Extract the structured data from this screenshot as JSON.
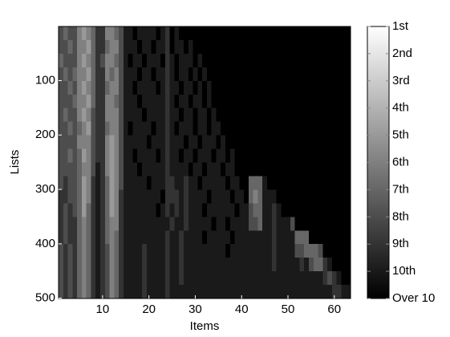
{
  "chart_data": {
    "type": "heatmap",
    "xlabel": "Items",
    "ylabel": "Lists",
    "x": [
      1,
      2,
      3,
      4,
      5,
      6,
      7,
      8,
      9,
      10,
      11,
      12,
      13,
      14,
      15,
      16,
      17,
      18,
      19,
      20,
      21,
      22,
      23,
      24,
      25,
      26,
      27,
      28,
      29,
      30,
      31,
      32,
      33,
      34,
      35,
      36,
      37,
      38,
      39,
      40,
      41,
      42,
      43,
      44,
      45,
      46,
      47,
      48,
      49,
      50,
      51,
      52,
      53,
      54,
      55,
      56,
      57,
      58,
      59,
      60,
      61,
      62,
      63
    ],
    "ybins": [
      0.5,
      25.5,
      50.5,
      75.5,
      100.5,
      125.5,
      150.5,
      175.5,
      200.5,
      225.5,
      250.5,
      275.5,
      300.5,
      325.5,
      350.5,
      375.5,
      400.5,
      425.5,
      450.5,
      475.5,
      500.5
    ],
    "xlim": [
      0.5,
      63.5
    ],
    "xticks": [
      10,
      20,
      30,
      40,
      50,
      60
    ],
    "ylim": [
      0.5,
      500.5
    ],
    "yticks": [
      100,
      200,
      300,
      400,
      500
    ],
    "y_reversed": true,
    "clim": [
      1,
      11
    ],
    "colorbar_ticks": [
      {
        "value": 1,
        "label": "1st"
      },
      {
        "value": 2,
        "label": "2nd"
      },
      {
        "value": 3,
        "label": "3rd"
      },
      {
        "value": 4,
        "label": "4th"
      },
      {
        "value": 5,
        "label": "5th"
      },
      {
        "value": 6,
        "label": "6th"
      },
      {
        "value": 7,
        "label": "7th"
      },
      {
        "value": 8,
        "label": "8th"
      },
      {
        "value": 9,
        "label": "9th"
      },
      {
        "value": 10,
        "label": "10th"
      },
      {
        "value": 11,
        "label": "Over 10"
      }
    ],
    "z": [
      [
        8,
        7,
        8,
        8,
        6,
        5,
        6,
        7,
        9,
        9,
        6,
        6,
        7,
        8,
        10,
        10,
        11,
        10,
        10,
        10,
        10,
        11,
        10,
        9,
        11,
        10,
        11,
        11,
        11,
        11,
        11,
        11,
        11,
        11,
        11,
        11,
        11,
        11,
        11,
        11,
        11,
        11,
        11,
        11,
        11,
        11,
        11,
        11,
        11,
        11,
        11,
        11,
        11,
        11,
        11,
        11,
        11,
        11,
        11,
        11,
        11,
        11,
        11
      ],
      [
        8,
        8,
        7,
        8,
        6,
        6,
        5,
        7,
        9,
        9,
        7,
        6,
        6,
        8,
        10,
        10,
        10,
        11,
        10,
        10,
        11,
        10,
        10,
        9,
        11,
        10,
        10,
        11,
        10,
        11,
        11,
        11,
        11,
        11,
        11,
        11,
        11,
        11,
        11,
        11,
        11,
        11,
        11,
        11,
        11,
        11,
        11,
        11,
        11,
        11,
        11,
        11,
        11,
        11,
        11,
        11,
        11,
        11,
        11,
        11,
        11,
        11,
        11
      ],
      [
        7,
        8,
        8,
        8,
        6,
        5,
        6,
        7,
        9,
        8,
        6,
        6,
        7,
        8,
        10,
        11,
        10,
        10,
        11,
        10,
        10,
        10,
        11,
        9,
        10,
        11,
        10,
        10,
        10,
        11,
        10,
        11,
        11,
        11,
        11,
        11,
        11,
        11,
        11,
        11,
        11,
        11,
        11,
        11,
        11,
        11,
        11,
        11,
        11,
        11,
        11,
        11,
        11,
        11,
        11,
        11,
        11,
        11,
        11,
        11,
        11,
        11,
        11
      ],
      [
        8,
        7,
        8,
        7,
        6,
        6,
        5,
        7,
        9,
        9,
        6,
        7,
        6,
        8,
        10,
        10,
        10,
        11,
        10,
        10,
        11,
        10,
        10,
        9,
        10,
        11,
        10,
        10,
        11,
        10,
        11,
        10,
        11,
        11,
        11,
        11,
        11,
        11,
        11,
        11,
        11,
        11,
        11,
        11,
        11,
        11,
        11,
        11,
        11,
        11,
        11,
        11,
        11,
        11,
        11,
        11,
        11,
        11,
        11,
        11,
        11,
        11,
        11
      ],
      [
        8,
        8,
        7,
        8,
        6,
        5,
        6,
        7,
        9,
        9,
        7,
        6,
        6,
        8,
        10,
        10,
        11,
        10,
        10,
        10,
        10,
        11,
        10,
        9,
        10,
        10,
        11,
        10,
        10,
        11,
        10,
        11,
        10,
        11,
        11,
        11,
        11,
        11,
        11,
        11,
        11,
        11,
        11,
        11,
        11,
        11,
        11,
        11,
        11,
        11,
        11,
        11,
        11,
        11,
        11,
        11,
        11,
        11,
        11,
        11,
        11,
        11,
        11
      ],
      [
        8,
        8,
        8,
        7,
        6,
        6,
        5,
        7,
        9,
        9,
        6,
        6,
        7,
        8,
        10,
        10,
        10,
        11,
        10,
        10,
        10,
        10,
        10,
        9,
        10,
        11,
        10,
        10,
        11,
        10,
        10,
        11,
        10,
        11,
        11,
        11,
        11,
        11,
        11,
        11,
        11,
        11,
        11,
        11,
        11,
        11,
        11,
        11,
        11,
        11,
        11,
        11,
        11,
        11,
        11,
        11,
        11,
        11,
        11,
        11,
        11,
        11,
        11
      ],
      [
        8,
        7,
        8,
        8,
        6,
        5,
        6,
        8,
        9,
        9,
        6,
        6,
        6,
        8,
        10,
        10,
        10,
        10,
        11,
        10,
        10,
        10,
        10,
        9,
        10,
        10,
        11,
        10,
        10,
        11,
        10,
        10,
        11,
        10,
        11,
        11,
        11,
        11,
        11,
        11,
        11,
        11,
        11,
        11,
        11,
        11,
        11,
        11,
        11,
        11,
        11,
        11,
        11,
        11,
        11,
        11,
        11,
        11,
        11,
        11,
        11,
        11,
        11
      ],
      [
        8,
        8,
        7,
        8,
        7,
        6,
        5,
        8,
        9,
        9,
        7,
        6,
        6,
        8,
        10,
        11,
        10,
        10,
        10,
        10,
        11,
        10,
        10,
        9,
        10,
        11,
        10,
        10,
        10,
        11,
        10,
        10,
        11,
        10,
        10,
        11,
        11,
        11,
        11,
        11,
        11,
        11,
        11,
        11,
        11,
        11,
        11,
        11,
        11,
        11,
        11,
        11,
        11,
        11,
        11,
        11,
        11,
        11,
        11,
        11,
        11,
        11,
        11
      ],
      [
        8,
        8,
        8,
        8,
        6,
        6,
        6,
        8,
        9,
        9,
        6,
        5,
        6,
        8,
        10,
        10,
        10,
        10,
        10,
        11,
        10,
        10,
        10,
        9,
        10,
        10,
        10,
        11,
        10,
        10,
        11,
        10,
        10,
        10,
        11,
        10,
        11,
        11,
        11,
        11,
        11,
        11,
        11,
        11,
        11,
        11,
        11,
        11,
        11,
        11,
        11,
        11,
        11,
        11,
        11,
        11,
        11,
        11,
        11,
        11,
        11,
        11,
        11
      ],
      [
        8,
        8,
        7,
        8,
        7,
        5,
        6,
        8,
        9,
        9,
        6,
        5,
        6,
        8,
        10,
        10,
        11,
        10,
        10,
        10,
        10,
        11,
        10,
        9,
        10,
        10,
        11,
        10,
        10,
        11,
        10,
        10,
        10,
        11,
        10,
        10,
        11,
        10,
        11,
        11,
        11,
        11,
        11,
        11,
        11,
        11,
        11,
        11,
        11,
        11,
        11,
        11,
        11,
        11,
        11,
        11,
        11,
        11,
        11,
        11,
        11,
        11,
        11
      ],
      [
        8,
        8,
        8,
        8,
        7,
        6,
        6,
        8,
        10,
        9,
        6,
        5,
        6,
        8,
        10,
        10,
        10,
        11,
        10,
        10,
        10,
        10,
        10,
        9,
        10,
        10,
        10,
        10,
        11,
        10,
        10,
        11,
        10,
        10,
        10,
        11,
        10,
        10,
        11,
        11,
        11,
        11,
        11,
        11,
        11,
        11,
        11,
        11,
        11,
        11,
        11,
        11,
        11,
        11,
        11,
        11,
        11,
        11,
        11,
        11,
        11,
        11,
        11
      ],
      [
        8,
        9,
        8,
        8,
        7,
        5,
        6,
        9,
        10,
        9,
        7,
        5,
        6,
        8,
        10,
        10,
        10,
        10,
        10,
        11,
        10,
        10,
        10,
        9,
        9,
        10,
        10,
        9,
        10,
        10,
        11,
        10,
        10,
        10,
        10,
        10,
        11,
        10,
        10,
        11,
        11,
        7,
        7,
        7,
        10,
        11,
        11,
        11,
        11,
        11,
        11,
        11,
        11,
        11,
        11,
        11,
        11,
        11,
        11,
        11,
        11,
        11,
        11
      ],
      [
        9,
        9,
        8,
        8,
        7,
        5,
        6,
        9,
        10,
        9,
        7,
        5,
        6,
        9,
        10,
        10,
        10,
        10,
        10,
        10,
        10,
        10,
        11,
        9,
        9,
        9,
        10,
        9,
        10,
        10,
        10,
        10,
        11,
        10,
        10,
        10,
        10,
        11,
        10,
        10,
        11,
        7,
        6,
        7,
        10,
        10,
        10,
        11,
        11,
        11,
        11,
        11,
        11,
        11,
        11,
        11,
        11,
        11,
        11,
        11,
        11,
        11,
        11
      ],
      [
        9,
        8,
        9,
        8,
        7,
        5,
        7,
        9,
        10,
        9,
        7,
        5,
        6,
        9,
        10,
        10,
        10,
        10,
        10,
        10,
        10,
        11,
        10,
        9,
        10,
        9,
        10,
        9,
        10,
        10,
        10,
        11,
        10,
        10,
        10,
        10,
        10,
        10,
        11,
        10,
        10,
        8,
        7,
        7,
        10,
        10,
        9,
        10,
        11,
        11,
        11,
        11,
        11,
        11,
        11,
        11,
        11,
        11,
        11,
        11,
        11,
        11,
        11
      ],
      [
        9,
        8,
        9,
        9,
        7,
        6,
        7,
        9,
        10,
        9,
        7,
        6,
        6,
        9,
        10,
        10,
        10,
        10,
        10,
        10,
        10,
        10,
        10,
        10,
        9,
        10,
        10,
        9,
        10,
        10,
        10,
        10,
        10,
        11,
        10,
        10,
        11,
        10,
        10,
        10,
        10,
        8,
        8,
        7,
        10,
        10,
        9,
        10,
        10,
        10,
        8,
        11,
        11,
        11,
        11,
        11,
        11,
        11,
        11,
        11,
        11,
        11,
        11
      ],
      [
        9,
        8,
        9,
        9,
        7,
        6,
        7,
        9,
        10,
        9,
        7,
        6,
        7,
        9,
        10,
        10,
        10,
        10,
        10,
        10,
        10,
        10,
        10,
        9,
        10,
        10,
        9,
        10,
        10,
        10,
        10,
        11,
        10,
        10,
        10,
        10,
        10,
        11,
        10,
        10,
        10,
        10,
        10,
        10,
        10,
        10,
        9,
        10,
        10,
        10,
        10,
        7,
        7,
        7,
        11,
        11,
        11,
        11,
        11,
        11,
        11,
        11,
        11
      ],
      [
        8,
        9,
        8,
        9,
        7,
        6,
        7,
        9,
        10,
        9,
        8,
        6,
        7,
        9,
        10,
        10,
        10,
        10,
        9,
        10,
        10,
        10,
        10,
        9,
        10,
        10,
        9,
        10,
        10,
        10,
        10,
        10,
        10,
        10,
        10,
        10,
        11,
        10,
        10,
        10,
        10,
        10,
        10,
        10,
        10,
        10,
        9,
        10,
        10,
        10,
        10,
        8,
        8,
        7,
        7,
        7,
        8,
        11,
        11,
        11,
        11,
        11,
        11
      ],
      [
        8,
        9,
        8,
        9,
        7,
        6,
        7,
        9,
        10,
        9,
        8,
        6,
        7,
        9,
        10,
        10,
        10,
        10,
        9,
        10,
        10,
        10,
        10,
        9,
        10,
        10,
        9,
        10,
        10,
        10,
        10,
        10,
        10,
        10,
        10,
        10,
        10,
        10,
        10,
        10,
        10,
        10,
        10,
        10,
        10,
        10,
        9,
        10,
        10,
        10,
        10,
        10,
        9,
        10,
        8,
        7,
        7,
        9,
        10,
        11,
        11,
        11,
        11
      ],
      [
        8,
        9,
        8,
        9,
        7,
        6,
        7,
        9,
        10,
        9,
        8,
        6,
        7,
        9,
        10,
        10,
        10,
        10,
        9,
        10,
        10,
        10,
        10,
        9,
        10,
        10,
        9,
        10,
        10,
        10,
        10,
        10,
        10,
        10,
        10,
        10,
        10,
        10,
        10,
        10,
        10,
        10,
        10,
        10,
        10,
        10,
        10,
        10,
        10,
        10,
        10,
        10,
        10,
        10,
        10,
        10,
        10,
        9,
        8,
        9,
        10,
        11,
        11
      ],
      [
        8,
        9,
        8,
        9,
        7,
        6,
        7,
        9,
        10,
        9,
        8,
        6,
        7,
        9,
        10,
        10,
        10,
        10,
        9,
        10,
        10,
        10,
        10,
        9,
        10,
        10,
        10,
        10,
        10,
        10,
        10,
        10,
        10,
        10,
        10,
        10,
        10,
        10,
        10,
        10,
        10,
        10,
        10,
        10,
        10,
        10,
        10,
        10,
        10,
        10,
        10,
        10,
        10,
        10,
        10,
        10,
        10,
        10,
        10,
        9,
        9,
        10,
        10
      ]
    ]
  }
}
